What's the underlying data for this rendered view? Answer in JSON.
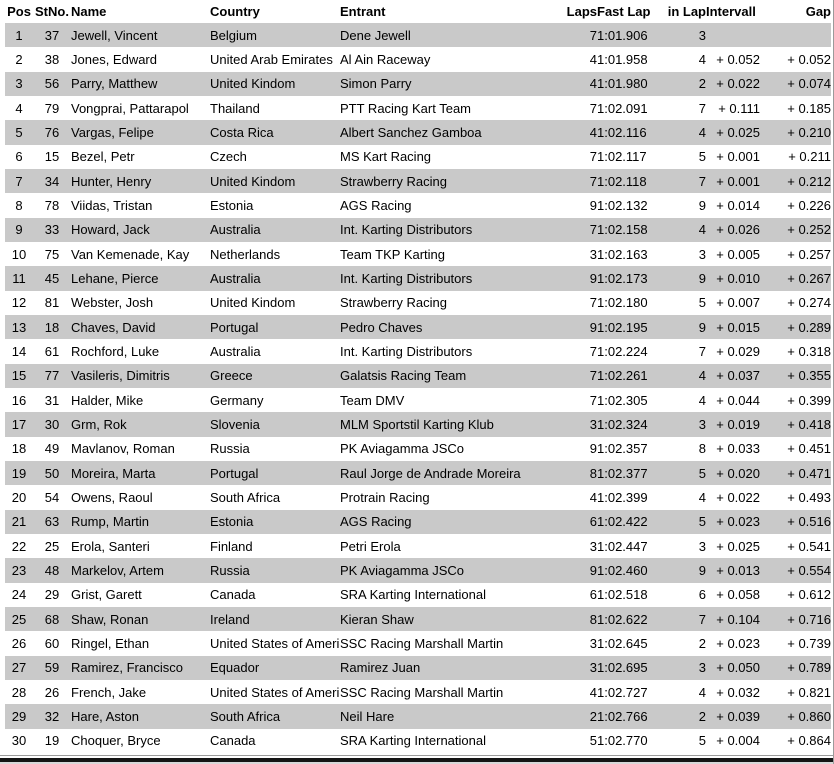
{
  "table": {
    "columns": [
      {
        "key": "pos",
        "label": "Pos"
      },
      {
        "key": "stno",
        "label": "StNo."
      },
      {
        "key": "name",
        "label": "Name"
      },
      {
        "key": "country",
        "label": "Country"
      },
      {
        "key": "entrant",
        "label": "Entrant"
      },
      {
        "key": "laps",
        "label": "Laps"
      },
      {
        "key": "fast_lap",
        "label": "Fast Lap"
      },
      {
        "key": "in_lap",
        "label": "in Lap"
      },
      {
        "key": "intervall",
        "label": "Intervall"
      },
      {
        "key": "gap",
        "label": "Gap"
      }
    ],
    "rows": [
      [
        "1",
        "37",
        "Jewell, Vincent",
        "Belgium",
        "Dene Jewell",
        "7",
        "1:01.906",
        "3",
        "",
        ""
      ],
      [
        "2",
        "38",
        "Jones, Edward",
        "United Arab Emirates",
        "Al Ain Raceway",
        "4",
        "1:01.958",
        "4",
        "+ 0.052",
        "+ 0.052"
      ],
      [
        "3",
        "56",
        "Parry, Matthew",
        "United Kindom",
        "Simon Parry",
        "4",
        "1:01.980",
        "2",
        "+ 0.022",
        "+ 0.074"
      ],
      [
        "4",
        "79",
        "Vongprai, Pattarapol",
        "Thailand",
        "PTT Racing Kart Team",
        "7",
        "1:02.091",
        "7",
        "+ 0.111",
        "+ 0.185"
      ],
      [
        "5",
        "76",
        "Vargas, Felipe",
        "Costa Rica",
        "Albert Sanchez Gamboa",
        "4",
        "1:02.116",
        "4",
        "+ 0.025",
        "+ 0.210"
      ],
      [
        "6",
        "15",
        "Bezel, Petr",
        "Czech",
        "MS Kart Racing",
        "7",
        "1:02.117",
        "5",
        "+ 0.001",
        "+ 0.211"
      ],
      [
        "7",
        "34",
        "Hunter, Henry",
        "United Kindom",
        "Strawberry Racing",
        "7",
        "1:02.118",
        "7",
        "+ 0.001",
        "+ 0.212"
      ],
      [
        "8",
        "78",
        "Viidas, Tristan",
        "Estonia",
        "AGS Racing",
        "9",
        "1:02.132",
        "9",
        "+ 0.014",
        "+ 0.226"
      ],
      [
        "9",
        "33",
        "Howard, Jack",
        "Australia",
        "Int. Karting Distributors",
        "7",
        "1:02.158",
        "4",
        "+ 0.026",
        "+ 0.252"
      ],
      [
        "10",
        "75",
        "Van Kemenade, Kay",
        "Netherlands",
        "Team TKP Karting",
        "3",
        "1:02.163",
        "3",
        "+ 0.005",
        "+ 0.257"
      ],
      [
        "11",
        "45",
        "Lehane, Pierce",
        "Australia",
        "Int. Karting Distributors",
        "9",
        "1:02.173",
        "9",
        "+ 0.010",
        "+ 0.267"
      ],
      [
        "12",
        "81",
        "Webster, Josh",
        "United Kindom",
        "Strawberry Racing",
        "7",
        "1:02.180",
        "5",
        "+ 0.007",
        "+ 0.274"
      ],
      [
        "13",
        "18",
        "Chaves, David",
        "Portugal",
        "Pedro Chaves",
        "9",
        "1:02.195",
        "9",
        "+ 0.015",
        "+ 0.289"
      ],
      [
        "14",
        "61",
        "Rochford, Luke",
        "Australia",
        "Int. Karting Distributors",
        "7",
        "1:02.224",
        "7",
        "+ 0.029",
        "+ 0.318"
      ],
      [
        "15",
        "77",
        "Vasileris, Dimitris",
        "Greece",
        "Galatsis Racing Team",
        "7",
        "1:02.261",
        "4",
        "+ 0.037",
        "+ 0.355"
      ],
      [
        "16",
        "31",
        "Halder, Mike",
        "Germany",
        "Team DMV",
        "7",
        "1:02.305",
        "4",
        "+ 0.044",
        "+ 0.399"
      ],
      [
        "17",
        "30",
        "Grm, Rok",
        "Slovenia",
        "MLM Sportstil Karting Klub",
        "3",
        "1:02.324",
        "3",
        "+ 0.019",
        "+ 0.418"
      ],
      [
        "18",
        "49",
        "Mavlanov, Roman",
        "Russia",
        "PK Aviagamma JSCo",
        "9",
        "1:02.357",
        "8",
        "+ 0.033",
        "+ 0.451"
      ],
      [
        "19",
        "50",
        "Moreira, Marta",
        "Portugal",
        "Raul Jorge de Andrade Moreira",
        "8",
        "1:02.377",
        "5",
        "+ 0.020",
        "+ 0.471"
      ],
      [
        "20",
        "54",
        "Owens, Raoul",
        "South Africa",
        "Protrain Racing",
        "4",
        "1:02.399",
        "4",
        "+ 0.022",
        "+ 0.493"
      ],
      [
        "21",
        "63",
        "Rump, Martin",
        "Estonia",
        "AGS Racing",
        "6",
        "1:02.422",
        "5",
        "+ 0.023",
        "+ 0.516"
      ],
      [
        "22",
        "25",
        "Erola, Santeri",
        "Finland",
        "Petri Erola",
        "3",
        "1:02.447",
        "3",
        "+ 0.025",
        "+ 0.541"
      ],
      [
        "23",
        "48",
        "Markelov, Artem",
        "Russia",
        "PK Aviagamma JSCo",
        "9",
        "1:02.460",
        "9",
        "+ 0.013",
        "+ 0.554"
      ],
      [
        "24",
        "29",
        "Grist, Garett",
        "Canada",
        "SRA Karting International",
        "6",
        "1:02.518",
        "6",
        "+ 0.058",
        "+ 0.612"
      ],
      [
        "25",
        "68",
        "Shaw, Ronan",
        "Ireland",
        "Kieran Shaw",
        "8",
        "1:02.622",
        "7",
        "+ 0.104",
        "+ 0.716"
      ],
      [
        "26",
        "60",
        "Ringel, Ethan",
        "United States of America",
        "SSC Racing Marshall Martin",
        "3",
        "1:02.645",
        "2",
        "+ 0.023",
        "+ 0.739"
      ],
      [
        "27",
        "59",
        "Ramirez, Francisco",
        "Equador",
        "Ramirez Juan",
        "3",
        "1:02.695",
        "3",
        "+ 0.050",
        "+ 0.789"
      ],
      [
        "28",
        "26",
        "French, Jake",
        "United States of America",
        "SSC Racing Marshall Martin",
        "4",
        "1:02.727",
        "4",
        "+ 0.032",
        "+ 0.821"
      ],
      [
        "29",
        "32",
        "Hare, Aston",
        "South Africa",
        "Neil Hare",
        "2",
        "1:02.766",
        "2",
        "+ 0.039",
        "+ 0.860"
      ],
      [
        "30",
        "19",
        "Choquer, Bryce",
        "Canada",
        "SRA Karting International",
        "5",
        "1:02.770",
        "5",
        "+ 0.004",
        "+ 0.864"
      ]
    ]
  },
  "colors": {
    "row_stripe": "#c9c9c9",
    "header_text": "#000000",
    "body_text": "#000000",
    "border_line": "#9b9b9b",
    "bottom_bar": "#141414"
  }
}
